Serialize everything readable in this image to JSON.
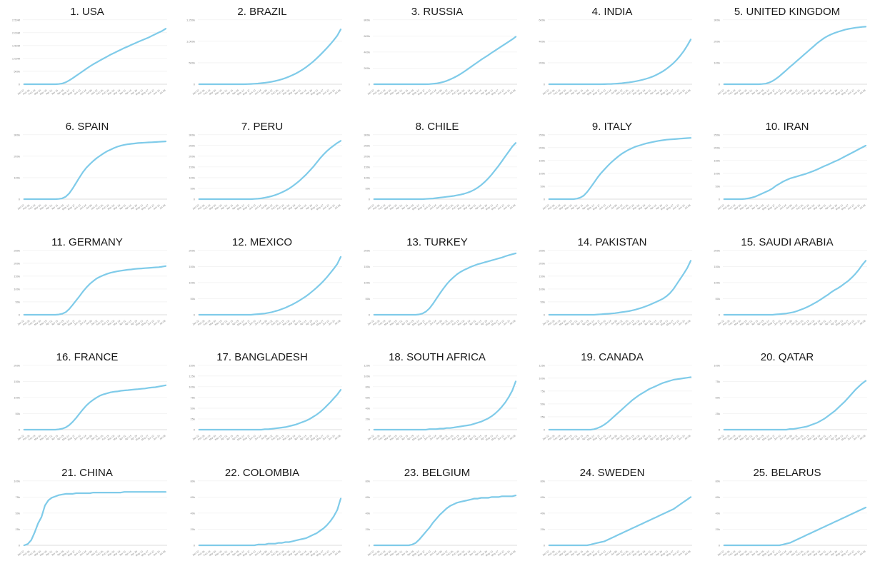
{
  "style": {
    "line_color": "#7fcbe9",
    "grid_color": "#e9e9e9",
    "axis_color": "#d0d0d0",
    "tick_text_color": "#888888"
  },
  "chart_data": [
    {
      "type": "line",
      "title": "1. USA",
      "yticks": [
        "0",
        "500k",
        "1.00M",
        "1.50M",
        "2.00M",
        "2.50M"
      ],
      "ymax": 2.7,
      "y": [
        0,
        0,
        0,
        0,
        0,
        0,
        0,
        0,
        0,
        0,
        0.01,
        0.03,
        0.08,
        0.16,
        0.25,
        0.35,
        0.45,
        0.55,
        0.65,
        0.75,
        0.84,
        0.92,
        1.0,
        1.08,
        1.16,
        1.24,
        1.31,
        1.38,
        1.45,
        1.52,
        1.58,
        1.65,
        1.71,
        1.78,
        1.84,
        1.9,
        1.96,
        2.03,
        2.1,
        2.17,
        2.24,
        2.33
      ]
    },
    {
      "type": "line",
      "title": "2. BRAZIL",
      "yticks": [
        "0",
        "500k",
        "1,000k",
        "1,250k"
      ],
      "ymax": 1.35,
      "y": [
        0,
        0,
        0,
        0,
        0,
        0,
        0,
        0,
        0,
        0,
        0,
        0,
        0,
        0,
        0.003,
        0.006,
        0.01,
        0.015,
        0.022,
        0.03,
        0.04,
        0.053,
        0.068,
        0.086,
        0.107,
        0.13,
        0.158,
        0.19,
        0.225,
        0.265,
        0.31,
        0.36,
        0.415,
        0.475,
        0.54,
        0.61,
        0.685,
        0.76,
        0.84,
        0.925,
        1.02,
        1.15
      ]
    },
    {
      "type": "line",
      "title": "3. RUSSIA",
      "yticks": [
        "0",
        "200k",
        "400k",
        "600k",
        "800k"
      ],
      "ymax": 800,
      "y": [
        0,
        0,
        0,
        0,
        0,
        0,
        0,
        0,
        0,
        0,
        0,
        0,
        0,
        0,
        0,
        0,
        2,
        5,
        10,
        18,
        28,
        42,
        60,
        80,
        102,
        127,
        155,
        185,
        215,
        245,
        275,
        305,
        333,
        360,
        390,
        418,
        446,
        474,
        502,
        530,
        558,
        590
      ]
    },
    {
      "type": "line",
      "title": "4. INDIA",
      "yticks": [
        "0",
        "200k",
        "400k",
        "600k"
      ],
      "ymax": 640,
      "y": [
        0,
        0,
        0,
        0,
        0,
        0,
        0,
        0,
        0,
        0,
        0,
        0,
        0,
        0,
        0,
        0,
        1,
        2,
        3,
        5,
        7,
        10,
        14,
        18,
        23,
        29,
        36,
        44,
        53,
        64,
        77,
        92,
        110,
        130,
        153,
        180,
        210,
        245,
        285,
        330,
        385,
        445
      ]
    },
    {
      "type": "line",
      "title": "5. UNITED KINGDOM",
      "yticks": [
        "0",
        "100k",
        "200k",
        "300k"
      ],
      "ymax": 320,
      "y": [
        0,
        0,
        0,
        0,
        0,
        0,
        0,
        0,
        0,
        0,
        0,
        1,
        3,
        8,
        16,
        27,
        40,
        55,
        70,
        86,
        100,
        115,
        130,
        145,
        160,
        175,
        190,
        205,
        218,
        230,
        240,
        248,
        255,
        261,
        266,
        271,
        275,
        278,
        281,
        283,
        285,
        286
      ]
    },
    {
      "type": "line",
      "title": "6. SPAIN",
      "yticks": [
        "0",
        "100k",
        "200k",
        "300k"
      ],
      "ymax": 320,
      "y": [
        0,
        0,
        0,
        0,
        0,
        0,
        0,
        0,
        0,
        0,
        1,
        4,
        12,
        28,
        52,
        80,
        108,
        134,
        156,
        174,
        190,
        204,
        216,
        228,
        238,
        246,
        254,
        261,
        266,
        270,
        273,
        275,
        277,
        279,
        280,
        281,
        282,
        283,
        284,
        285,
        286,
        287
      ]
    },
    {
      "type": "line",
      "title": "7. PERU",
      "yticks": [
        "0",
        "50k",
        "100k",
        "150k",
        "200k",
        "250k",
        "300k"
      ],
      "ymax": 300,
      "y": [
        0,
        0,
        0,
        0,
        0,
        0,
        0,
        0,
        0,
        0,
        0,
        0,
        0,
        0,
        0,
        0,
        1,
        2,
        4,
        7,
        10,
        14,
        19,
        25,
        32,
        40,
        49,
        60,
        72,
        85,
        100,
        115,
        132,
        150,
        170,
        190,
        208,
        224,
        238,
        250,
        262,
        272
      ]
    },
    {
      "type": "line",
      "title": "8. CHILE",
      "yticks": [
        "0",
        "50k",
        "100k",
        "150k",
        "200k",
        "250k",
        "300k"
      ],
      "ymax": 300,
      "y": [
        0,
        0,
        0,
        0,
        0,
        0,
        0,
        0,
        0,
        0,
        0,
        0,
        0,
        0,
        0,
        1,
        2,
        3,
        5,
        7,
        9,
        11,
        13,
        15,
        18,
        21,
        25,
        30,
        36,
        44,
        54,
        66,
        80,
        96,
        114,
        134,
        155,
        177,
        200,
        222,
        245,
        262
      ]
    },
    {
      "type": "line",
      "title": "9. ITALY",
      "yticks": [
        "0",
        "50k",
        "100k",
        "150k",
        "200k",
        "250k"
      ],
      "ymax": 250,
      "y": [
        0,
        0,
        0,
        0,
        0,
        0,
        0,
        0,
        2,
        6,
        14,
        28,
        46,
        65,
        84,
        101,
        116,
        130,
        143,
        155,
        166,
        176,
        184,
        192,
        198,
        204,
        208,
        212,
        216,
        219,
        222,
        225,
        227,
        229,
        231,
        232,
        233,
        234,
        235,
        236,
        237,
        238
      ]
    },
    {
      "type": "line",
      "title": "10. IRAN",
      "yticks": [
        "0",
        "50k",
        "100k",
        "150k",
        "200k",
        "250k"
      ],
      "ymax": 250,
      "y": [
        0,
        0,
        0,
        0,
        0,
        0,
        1,
        3,
        6,
        10,
        16,
        22,
        28,
        34,
        42,
        52,
        60,
        68,
        74,
        80,
        84,
        88,
        92,
        96,
        100,
        105,
        110,
        116,
        122,
        128,
        134,
        140,
        146,
        152,
        159,
        166,
        173,
        180,
        187,
        194,
        201,
        208
      ]
    },
    {
      "type": "line",
      "title": "11. GERMANY",
      "yticks": [
        "0",
        "50k",
        "100k",
        "150k",
        "200k",
        "250k"
      ],
      "ymax": 250,
      "y": [
        0,
        0,
        0,
        0,
        0,
        0,
        0,
        0,
        0,
        0,
        1,
        4,
        10,
        22,
        38,
        55,
        72,
        90,
        106,
        120,
        131,
        141,
        148,
        154,
        159,
        163,
        166,
        169,
        171,
        173,
        175,
        176,
        178,
        179,
        180,
        181,
        182,
        183,
        184,
        185,
        187,
        189
      ]
    },
    {
      "type": "line",
      "title": "12. MEXICO",
      "yticks": [
        "0",
        "50k",
        "100k",
        "150k",
        "200k"
      ],
      "ymax": 200,
      "y": [
        0,
        0,
        0,
        0,
        0,
        0,
        0,
        0,
        0,
        0,
        0,
        0,
        0,
        0,
        0,
        0,
        1,
        2,
        3,
        4,
        6,
        8,
        11,
        14,
        18,
        22,
        27,
        32,
        38,
        44,
        51,
        58,
        66,
        75,
        84,
        94,
        105,
        117,
        130,
        143,
        158,
        180
      ]
    },
    {
      "type": "line",
      "title": "13. TURKEY",
      "yticks": [
        "0",
        "50k",
        "100k",
        "150k",
        "200k"
      ],
      "ymax": 200,
      "y": [
        0,
        0,
        0,
        0,
        0,
        0,
        0,
        0,
        0,
        0,
        0,
        0,
        0,
        1,
        4,
        10,
        20,
        34,
        50,
        66,
        81,
        95,
        107,
        117,
        126,
        133,
        139,
        144,
        149,
        153,
        157,
        160,
        163,
        166,
        169,
        172,
        175,
        178,
        182,
        185,
        188,
        191
      ]
    },
    {
      "type": "line",
      "title": "14. PAKISTAN",
      "yticks": [
        "0",
        "50k",
        "100k",
        "150k",
        "200k",
        "250k"
      ],
      "ymax": 250,
      "y": [
        0,
        0,
        0,
        0,
        0,
        0,
        0,
        0,
        0,
        0,
        0,
        0,
        0,
        0,
        1,
        2,
        3,
        4,
        5,
        6,
        8,
        10,
        12,
        14,
        17,
        20,
        24,
        28,
        33,
        38,
        44,
        50,
        56,
        63,
        72,
        84,
        100,
        120,
        140,
        160,
        182,
        210
      ]
    },
    {
      "type": "line",
      "title": "15. SAUDI ARABIA",
      "yticks": [
        "0",
        "50k",
        "100k",
        "150k",
        "200k"
      ],
      "ymax": 200,
      "y": [
        0,
        0,
        0,
        0,
        0,
        0,
        0,
        0,
        0,
        0,
        0,
        0,
        0,
        0,
        0,
        1,
        2,
        3,
        4,
        6,
        8,
        11,
        15,
        19,
        24,
        29,
        35,
        41,
        48,
        55,
        62,
        70,
        77,
        83,
        90,
        98,
        106,
        116,
        127,
        140,
        155,
        168
      ]
    },
    {
      "type": "line",
      "title": "16. FRANCE",
      "yticks": [
        "0",
        "50k",
        "100k",
        "150k",
        "200k"
      ],
      "ymax": 200,
      "y": [
        0,
        0,
        0,
        0,
        0,
        0,
        0,
        0,
        0,
        0,
        1,
        3,
        7,
        14,
        24,
        36,
        50,
        63,
        75,
        85,
        93,
        100,
        106,
        110,
        113,
        116,
        118,
        119,
        121,
        122,
        123,
        124,
        125,
        126,
        127,
        128,
        130,
        131,
        132,
        134,
        136,
        138
      ]
    },
    {
      "type": "line",
      "title": "17. BANGLADESH",
      "yticks": [
        "0",
        "25k",
        "50k",
        "75k",
        "100k",
        "125k",
        "150k"
      ],
      "ymax": 150,
      "y": [
        0,
        0,
        0,
        0,
        0,
        0,
        0,
        0,
        0,
        0,
        0,
        0,
        0,
        0,
        0,
        0,
        0,
        0,
        0,
        1,
        1,
        2,
        3,
        4,
        5,
        6,
        8,
        10,
        12,
        15,
        18,
        21,
        25,
        30,
        35,
        41,
        48,
        56,
        64,
        73,
        82,
        93
      ]
    },
    {
      "type": "line",
      "title": "18. SOUTH AFRICA",
      "yticks": [
        "0",
        "20k",
        "40k",
        "60k",
        "80k",
        "100k",
        "120k"
      ],
      "ymax": 120,
      "y": [
        0,
        0,
        0,
        0,
        0,
        0,
        0,
        0,
        0,
        0,
        0,
        0,
        0,
        0,
        0,
        0,
        1,
        1,
        1,
        2,
        2,
        3,
        3,
        4,
        5,
        6,
        7,
        8,
        9,
        11,
        13,
        15,
        18,
        21,
        25,
        30,
        36,
        43,
        51,
        61,
        73,
        90
      ]
    },
    {
      "type": "line",
      "title": "19. CANADA",
      "yticks": [
        "0",
        "25k",
        "50k",
        "75k",
        "100k",
        "125k"
      ],
      "ymax": 125,
      "y": [
        0,
        0,
        0,
        0,
        0,
        0,
        0,
        0,
        0,
        0,
        0,
        0,
        0,
        1,
        3,
        6,
        10,
        15,
        21,
        27,
        33,
        39,
        45,
        51,
        57,
        62,
        67,
        71,
        75,
        79,
        82,
        85,
        88,
        91,
        93,
        95,
        97,
        98,
        99,
        100,
        101,
        102
      ]
    },
    {
      "type": "line",
      "title": "20. QATAR",
      "yticks": [
        "0",
        "25k",
        "50k",
        "75k",
        "100k"
      ],
      "ymax": 100,
      "y": [
        0,
        0,
        0,
        0,
        0,
        0,
        0,
        0,
        0,
        0,
        0,
        0,
        0,
        0,
        0,
        0,
        0,
        0,
        0,
        1,
        1,
        2,
        3,
        4,
        5,
        7,
        9,
        11,
        14,
        17,
        21,
        25,
        29,
        34,
        39,
        44,
        50,
        56,
        62,
        67,
        72,
        76
      ]
    },
    {
      "type": "line",
      "title": "21. CHINA",
      "yticks": [
        "0",
        "25k",
        "50k",
        "75k",
        "100k"
      ],
      "ymax": 100,
      "y": [
        0,
        2,
        8,
        20,
        34,
        44,
        62,
        70,
        74,
        76,
        78,
        79,
        80,
        80,
        80,
        81,
        81,
        81,
        81,
        81,
        82,
        82,
        82,
        82,
        82,
        82,
        82,
        82,
        82,
        83,
        83,
        83,
        83,
        83,
        83,
        83,
        83,
        83,
        83,
        83,
        83,
        83
      ]
    },
    {
      "type": "line",
      "title": "22. COLOMBIA",
      "yticks": [
        "0",
        "20k",
        "40k",
        "60k",
        "80k"
      ],
      "ymax": 80,
      "y": [
        0,
        0,
        0,
        0,
        0,
        0,
        0,
        0,
        0,
        0,
        0,
        0,
        0,
        0,
        0,
        0,
        0,
        1,
        1,
        1,
        2,
        2,
        2,
        3,
        3,
        4,
        4,
        5,
        6,
        7,
        8,
        9,
        11,
        13,
        15,
        18,
        21,
        25,
        30,
        36,
        44,
        58
      ]
    },
    {
      "type": "line",
      "title": "23. BELGIUM",
      "yticks": [
        "0",
        "20k",
        "40k",
        "60k",
        "80k"
      ],
      "ymax": 80,
      "y": [
        0,
        0,
        0,
        0,
        0,
        0,
        0,
        0,
        0,
        0,
        0,
        1,
        3,
        7,
        12,
        17,
        22,
        28,
        33,
        38,
        42,
        46,
        49,
        51,
        53,
        54,
        55,
        56,
        57,
        58,
        58,
        59,
        59,
        59,
        60,
        60,
        60,
        61,
        61,
        61,
        61,
        62
      ]
    },
    {
      "type": "line",
      "title": "24. SWEDEN",
      "yticks": [
        "0",
        "20k",
        "40k",
        "60k",
        "80k"
      ],
      "ymax": 80,
      "y": [
        0,
        0,
        0,
        0,
        0,
        0,
        0,
        0,
        0,
        0,
        0,
        0,
        1,
        2,
        3,
        4,
        5,
        7,
        9,
        11,
        13,
        15,
        17,
        19,
        21,
        23,
        25,
        27,
        29,
        31,
        33,
        35,
        37,
        39,
        41,
        43,
        45,
        48,
        51,
        54,
        57,
        60
      ]
    },
    {
      "type": "line",
      "title": "25. BELARUS",
      "yticks": [
        "0",
        "20k",
        "40k",
        "60k",
        "80k"
      ],
      "ymax": 80,
      "y": [
        0,
        0,
        0,
        0,
        0,
        0,
        0,
        0,
        0,
        0,
        0,
        0,
        0,
        0,
        0,
        0,
        0,
        1,
        2,
        3,
        5,
        7,
        9,
        11,
        13,
        15,
        17,
        19,
        21,
        23,
        25,
        27,
        29,
        31,
        33,
        35,
        37,
        39,
        41,
        43,
        45,
        47
      ]
    }
  ]
}
